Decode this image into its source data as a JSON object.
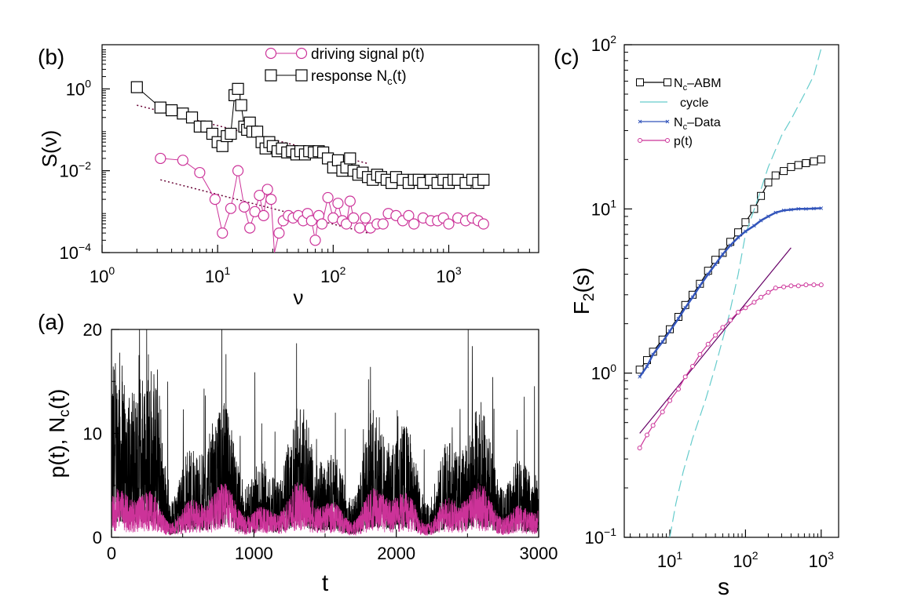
{
  "chart_data": [
    {
      "panel": "(b)",
      "type": "line",
      "title": "",
      "xlabel": "ν",
      "ylabel": "S(ν)",
      "xscale": "log",
      "yscale": "log",
      "xlim": [
        1,
        6000
      ],
      "ylim": [
        0.0001,
        12
      ],
      "xticks": [
        {
          "value": 1,
          "base": "10",
          "exp": "0"
        },
        {
          "value": 10,
          "base": "10",
          "exp": "1"
        },
        {
          "value": 100,
          "base": "10",
          "exp": "2"
        },
        {
          "value": 1000,
          "base": "10",
          "exp": "3"
        }
      ],
      "yticks": [
        {
          "value": 1,
          "base": "10",
          "exp": "0"
        },
        {
          "value": 0.01,
          "base": "10",
          "exp": "−2"
        },
        {
          "value": 0.0001,
          "base": "10",
          "exp": "−4"
        }
      ],
      "legend_position": "top-center",
      "series": [
        {
          "name": "driving signal p(t)",
          "color": "#cc3399",
          "marker": "circle",
          "x": [
            3.2,
            5,
            7,
            9.5,
            11,
            13,
            15,
            17,
            19,
            21,
            23,
            25,
            27,
            29,
            31,
            34,
            37,
            41,
            45,
            50,
            55,
            60,
            65,
            70,
            75,
            80,
            90,
            100,
            110,
            120,
            130,
            140,
            150,
            170,
            190,
            210,
            240,
            270,
            300,
            350,
            400,
            450,
            500,
            600,
            700,
            800,
            900,
            1000,
            1200,
            1400,
            1600,
            1800,
            2000
          ],
          "y": [
            0.02,
            0.018,
            0.009,
            0.002,
            0.0003,
            0.0012,
            0.01,
            0.0013,
            0.0004,
            0.001,
            0.0025,
            0.0008,
            0.0035,
            0.002,
            6e-05,
            0.0003,
            0.0006,
            0.0008,
            0.0007,
            0.0008,
            0.0006,
            0.0009,
            0.0006,
            0.0002,
            0.0008,
            0.0005,
            0.0022,
            0.0007,
            0.0016,
            0.0006,
            0.0005,
            0.0018,
            0.0007,
            0.0004,
            0.0007,
            0.0004,
            0.0005,
            0.0005,
            0.0009,
            0.0008,
            0.0006,
            0.0008,
            0.0005,
            0.0007,
            0.0006,
            0.0006,
            0.0007,
            0.0005,
            0.0007,
            0.0006,
            0.0007,
            0.0006,
            0.0005
          ]
        },
        {
          "name": "response N_c(t)",
          "color": "#000000",
          "marker": "square",
          "x": [
            2,
            3.2,
            4,
            5,
            6,
            7,
            8,
            9,
            10,
            11,
            12,
            13,
            14,
            15,
            16,
            17,
            18,
            19,
            20,
            22,
            24,
            26,
            28,
            30,
            33,
            36,
            40,
            44,
            48,
            52,
            57,
            62,
            68,
            75,
            82,
            90,
            100,
            110,
            120,
            130,
            140,
            150,
            165,
            180,
            200,
            220,
            240,
            260,
            290,
            320,
            350,
            400,
            450,
            500,
            550,
            600,
            700,
            800,
            900,
            1000,
            1100,
            1200,
            1400,
            1600,
            1800,
            2000
          ],
          "y": [
            1.1,
            0.35,
            0.3,
            0.25,
            0.2,
            0.12,
            0.12,
            0.08,
            0.05,
            0.04,
            0.07,
            0.08,
            0.7,
            1.0,
            0.4,
            0.12,
            0.1,
            0.15,
            0.09,
            0.09,
            0.05,
            0.035,
            0.05,
            0.04,
            0.03,
            0.035,
            0.028,
            0.03,
            0.025,
            0.03,
            0.025,
            0.03,
            0.028,
            0.03,
            0.028,
            0.02,
            0.012,
            0.018,
            0.01,
            0.012,
            0.02,
            0.01,
            0.008,
            0.009,
            0.007,
            0.006,
            0.008,
            0.007,
            0.006,
            0.005,
            0.007,
            0.006,
            0.005,
            0.006,
            0.006,
            0.005,
            0.006,
            0.005,
            0.006,
            0.005,
            0.006,
            0.006,
            0.005,
            0.006,
            0.005,
            0.006
          ]
        }
      ],
      "fit_lines": [
        {
          "color": "#660033",
          "style": "dotted",
          "x": [
            2,
            200
          ],
          "y": [
            0.4,
            0.015
          ]
        },
        {
          "color": "#660033",
          "style": "dotted",
          "x": [
            3.2,
            200
          ],
          "y": [
            0.006,
            0.0003
          ]
        }
      ]
    },
    {
      "panel": "(a)",
      "type": "line",
      "title": "",
      "xlabel": "t",
      "ylabel": "p(t), N_c(t)",
      "xlim": [
        0,
        3000
      ],
      "ylim": [
        0,
        20
      ],
      "xticks": [
        0,
        1000,
        2000,
        3000
      ],
      "yticks": [
        0,
        10,
        20
      ],
      "series": [
        {
          "name": "N_c(t)",
          "color": "#000000",
          "mean": 4.5,
          "max": 20,
          "min": 0
        },
        {
          "name": "p(t)",
          "color": "#cc3399",
          "mean": 2,
          "max": 6.5,
          "min": 0
        }
      ]
    },
    {
      "panel": "(c)",
      "type": "line",
      "title": "",
      "xlabel": "s",
      "ylabel": "F_2(s)",
      "xscale": "log",
      "yscale": "log",
      "xlim": [
        2.5,
        1700
      ],
      "ylim": [
        0.1,
        100
      ],
      "xticks": [
        {
          "value": 10,
          "base": "10",
          "exp": "1"
        },
        {
          "value": 100,
          "base": "10",
          "exp": "2"
        },
        {
          "value": 1000,
          "base": "10",
          "exp": "3"
        }
      ],
      "yticks": [
        {
          "value": 0.1,
          "base": "10",
          "exp": "−1"
        },
        {
          "value": 1,
          "base": "10",
          "exp": "0"
        },
        {
          "value": 10,
          "base": "10",
          "exp": "1"
        },
        {
          "value": 100,
          "base": "10",
          "exp": "2"
        }
      ],
      "legend_position": "top-left",
      "series": [
        {
          "name": "N_c–ABM",
          "color": "#000000",
          "marker": "square",
          "x": [
            4,
            5,
            6,
            8,
            10,
            13,
            16,
            20,
            25,
            32,
            40,
            50,
            63,
            80,
            100,
            130,
            160,
            200,
            250,
            320,
            400,
            500,
            630,
            800,
            1000
          ],
          "y": [
            1.05,
            1.2,
            1.35,
            1.6,
            1.85,
            2.2,
            2.6,
            3.0,
            3.5,
            4.2,
            4.9,
            5.4,
            6.3,
            7.2,
            8.3,
            10.0,
            12.0,
            14.5,
            16.0,
            17.0,
            18.0,
            18.5,
            19.0,
            19.5,
            20.0
          ]
        },
        {
          "name": "cycle",
          "color": "#66cccc",
          "marker": "none",
          "x": [
            10,
            12,
            15,
            20,
            30,
            40,
            60,
            80,
            100,
            150,
            200,
            300,
            400,
            600,
            800,
            1000
          ],
          "y": [
            0.1,
            0.16,
            0.25,
            0.4,
            0.7,
            1.1,
            2.2,
            4.0,
            7.0,
            12.0,
            18.0,
            28.0,
            35.0,
            50.0,
            65.0,
            95.0
          ]
        },
        {
          "name": "N_c–Data",
          "color": "#3355bb",
          "marker": "x",
          "x": [
            4,
            5,
            6,
            8,
            10,
            13,
            16,
            20,
            25,
            32,
            40,
            50,
            63,
            80,
            100,
            130,
            160,
            200,
            250,
            320,
            400,
            500,
            630,
            800,
            1000
          ],
          "y": [
            0.95,
            1.1,
            1.3,
            1.55,
            1.8,
            2.15,
            2.5,
            2.9,
            3.4,
            4.0,
            4.6,
            5.3,
            6.0,
            6.7,
            7.3,
            7.9,
            8.5,
            9.0,
            9.5,
            9.8,
            9.9,
            10.0,
            10.0,
            10.05,
            10.1
          ]
        },
        {
          "name": "p(t)",
          "color": "#cc3399",
          "marker": "circle",
          "x": [
            4,
            5,
            6,
            8,
            10,
            13,
            16,
            20,
            25,
            32,
            40,
            50,
            63,
            80,
            100,
            130,
            160,
            200,
            250,
            320,
            400,
            500,
            630,
            800,
            1000
          ],
          "y": [
            0.35,
            0.42,
            0.48,
            0.58,
            0.68,
            0.8,
            0.95,
            1.1,
            1.3,
            1.5,
            1.7,
            1.9,
            2.1,
            2.35,
            2.5,
            2.7,
            2.9,
            3.1,
            3.3,
            3.35,
            3.4,
            3.4,
            3.45,
            3.45,
            3.45
          ]
        }
      ],
      "fit_lines": [
        {
          "color": "#660066",
          "style": "solid",
          "x": [
            4,
            400
          ],
          "y": [
            0.43,
            5.8
          ]
        }
      ]
    }
  ],
  "panel_labels": {
    "b": "(b)",
    "a": "(a)",
    "c": "(c)"
  }
}
